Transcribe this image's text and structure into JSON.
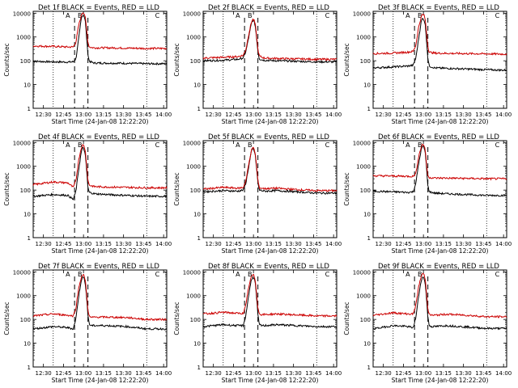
{
  "chart_data": [
    {
      "type": "line",
      "title": "Det 1f BLACK = Events, RED = LLD",
      "xlabel": "Start Time (24-Jan-08 12:22:20)",
      "ylabel": "Counts/sec",
      "scale": "log",
      "ylim": [
        1,
        12000
      ],
      "ytick_labels": [
        "1",
        "10",
        "100",
        "1000",
        "10000"
      ],
      "xtick_labels": [
        "12:30",
        "12:45",
        "13:00",
        "13:15",
        "13:30",
        "13:45",
        "14:00"
      ],
      "xlim_minutes": [
        0,
        100
      ],
      "markers": [
        "A",
        "B",
        "C"
      ],
      "series": [
        {
          "color": "#000000",
          "x": [
            0,
            15,
            26,
            30,
            32,
            34,
            36,
            37,
            38,
            39,
            40,
            41,
            42,
            44,
            46,
            55,
            70,
            85,
            100
          ],
          "y": [
            95,
            90,
            88,
            90,
            120,
            800,
            6000,
            8500,
            8000,
            5000,
            900,
            180,
            95,
            85,
            80,
            80,
            78,
            75,
            75
          ]
        },
        {
          "color": "#cc0000",
          "x": [
            0,
            15,
            26,
            30,
            32,
            34,
            36,
            37,
            38,
            39,
            40,
            41,
            42,
            44,
            46,
            55,
            70,
            85,
            100
          ],
          "y": [
            420,
            400,
            380,
            380,
            600,
            3000,
            8000,
            11000,
            10000,
            7000,
            2000,
            600,
            380,
            360,
            350,
            350,
            340,
            330,
            330
          ]
        }
      ]
    },
    {
      "type": "line",
      "title": "Det 2f BLACK = Events, RED = LLD",
      "xlabel": "Start Time (24-Jan-08 12:22:20)",
      "ylabel": "Counts/sec",
      "scale": "log",
      "ylim": [
        1,
        12000
      ],
      "ytick_labels": [
        "1",
        "10",
        "100",
        "1000",
        "10000"
      ],
      "xtick_labels": [
        "12:30",
        "12:45",
        "13:00",
        "13:15",
        "13:30",
        "13:45",
        "14:00"
      ],
      "xlim_minutes": [
        0,
        100
      ],
      "markers": [
        "A",
        "B",
        "C"
      ],
      "series": [
        {
          "color": "#000000",
          "x": [
            0,
            15,
            26,
            30,
            32,
            34,
            36,
            37,
            38,
            39,
            40,
            41,
            42,
            44,
            46,
            55,
            70,
            85,
            100
          ],
          "y": [
            100,
            105,
            115,
            130,
            250,
            900,
            3500,
            5000,
            4800,
            3000,
            900,
            250,
            120,
            110,
            105,
            100,
            95,
            90,
            90
          ]
        },
        {
          "color": "#cc0000",
          "x": [
            0,
            15,
            26,
            30,
            32,
            34,
            36,
            37,
            38,
            39,
            40,
            41,
            42,
            44,
            46,
            55,
            70,
            85,
            100
          ],
          "y": [
            130,
            140,
            150,
            170,
            300,
            1200,
            4000,
            5500,
            5200,
            3500,
            1100,
            300,
            160,
            140,
            130,
            125,
            120,
            115,
            115
          ]
        }
      ]
    },
    {
      "type": "line",
      "title": "Det 3f BLACK = Events, RED = LLD",
      "xlabel": "Start Time (24-Jan-08 12:22:20)",
      "ylabel": "Counts/sec",
      "scale": "log",
      "ylim": [
        1,
        12000
      ],
      "ytick_labels": [
        "1",
        "10",
        "100",
        "1000",
        "10000"
      ],
      "xtick_labels": [
        "12:30",
        "12:45",
        "13:00",
        "13:15",
        "13:30",
        "13:45",
        "14:00"
      ],
      "xlim_minutes": [
        0,
        100
      ],
      "markers": [
        "A",
        "B",
        "C"
      ],
      "series": [
        {
          "color": "#000000",
          "x": [
            0,
            15,
            26,
            30,
            32,
            34,
            36,
            37,
            38,
            39,
            40,
            41,
            42,
            44,
            46,
            55,
            70,
            85,
            100
          ],
          "y": [
            50,
            55,
            60,
            65,
            130,
            800,
            4500,
            6000,
            5500,
            3500,
            700,
            120,
            60,
            55,
            50,
            48,
            45,
            42,
            40
          ]
        },
        {
          "color": "#cc0000",
          "x": [
            0,
            15,
            26,
            30,
            32,
            34,
            36,
            37,
            38,
            39,
            40,
            41,
            42,
            44,
            46,
            55,
            70,
            85,
            100
          ],
          "y": [
            200,
            210,
            230,
            250,
            450,
            2500,
            7000,
            9000,
            8500,
            5500,
            1500,
            400,
            230,
            220,
            210,
            205,
            200,
            195,
            190
          ]
        }
      ]
    },
    {
      "type": "line",
      "title": "Det 4f BLACK = Events, RED = LLD",
      "xlabel": "Start Time (24-Jan-08 12:22:20)",
      "ylabel": "Counts/sec",
      "scale": "log",
      "ylim": [
        1,
        12000
      ],
      "ytick_labels": [
        "1",
        "10",
        "100",
        "1000",
        "10000"
      ],
      "xtick_labels": [
        "12:30",
        "12:45",
        "13:00",
        "13:15",
        "13:30",
        "13:45",
        "14:00"
      ],
      "xlim_minutes": [
        0,
        100
      ],
      "markers": [
        "A",
        "B",
        "C"
      ],
      "series": [
        {
          "color": "#000000",
          "x": [
            0,
            15,
            26,
            30,
            32,
            34,
            36,
            37,
            38,
            39,
            40,
            41,
            42,
            44,
            46,
            55,
            70,
            85,
            100
          ],
          "y": [
            55,
            65,
            60,
            40,
            90,
            700,
            4000,
            6000,
            5500,
            3000,
            700,
            120,
            80,
            75,
            70,
            65,
            60,
            55,
            55
          ]
        },
        {
          "color": "#cc0000",
          "x": [
            0,
            15,
            26,
            30,
            32,
            34,
            36,
            37,
            38,
            39,
            40,
            41,
            42,
            44,
            46,
            55,
            70,
            85,
            100
          ],
          "y": [
            170,
            220,
            200,
            130,
            250,
            1800,
            6000,
            8000,
            7500,
            4500,
            1200,
            250,
            160,
            150,
            140,
            135,
            130,
            125,
            125
          ]
        }
      ]
    },
    {
      "type": "line",
      "title": "Det 5f BLACK = Events, RED = LLD",
      "xlabel": "Start Time (24-Jan-08 12:22:20)",
      "ylabel": "Counts/sec",
      "scale": "log",
      "ylim": [
        1,
        12000
      ],
      "ytick_labels": [
        "1",
        "10",
        "100",
        "1000",
        "10000"
      ],
      "xtick_labels": [
        "12:30",
        "12:45",
        "13:00",
        "13:15",
        "13:30",
        "13:45",
        "14:00"
      ],
      "xlim_minutes": [
        0,
        100
      ],
      "markers": [
        "A",
        "B",
        "C"
      ],
      "series": [
        {
          "color": "#000000",
          "x": [
            0,
            15,
            26,
            30,
            32,
            34,
            36,
            37,
            38,
            39,
            40,
            41,
            42,
            44,
            46,
            55,
            70,
            85,
            100
          ],
          "y": [
            85,
            95,
            90,
            100,
            200,
            900,
            4000,
            5500,
            5000,
            3000,
            800,
            200,
            100,
            95,
            90,
            95,
            85,
            75,
            75
          ]
        },
        {
          "color": "#cc0000",
          "x": [
            0,
            15,
            26,
            30,
            32,
            34,
            36,
            37,
            38,
            39,
            40,
            41,
            42,
            44,
            46,
            55,
            70,
            85,
            100
          ],
          "y": [
            110,
            130,
            120,
            130,
            250,
            1100,
            4500,
            6000,
            5500,
            3500,
            1000,
            250,
            125,
            120,
            115,
            120,
            105,
            95,
            95
          ]
        }
      ]
    },
    {
      "type": "line",
      "title": "Det 6f BLACK = Events, RED = LLD",
      "xlabel": "Start Time (24-Jan-08 12:22:20)",
      "ylabel": "Counts/sec",
      "scale": "log",
      "ylim": [
        1,
        12000
      ],
      "ytick_labels": [
        "1",
        "10",
        "100",
        "1000",
        "10000"
      ],
      "xtick_labels": [
        "12:30",
        "12:45",
        "13:00",
        "13:15",
        "13:30",
        "13:45",
        "14:00"
      ],
      "xlim_minutes": [
        0,
        100
      ],
      "markers": [
        "A",
        "B",
        "C"
      ],
      "series": [
        {
          "color": "#000000",
          "x": [
            0,
            15,
            26,
            30,
            32,
            34,
            36,
            37,
            38,
            39,
            40,
            41,
            42,
            44,
            46,
            55,
            70,
            85,
            100
          ],
          "y": [
            90,
            85,
            80,
            85,
            200,
            1200,
            5000,
            7000,
            6500,
            4000,
            800,
            150,
            85,
            80,
            75,
            70,
            65,
            60,
            60
          ]
        },
        {
          "color": "#cc0000",
          "x": [
            0,
            15,
            26,
            30,
            32,
            34,
            36,
            37,
            38,
            39,
            40,
            41,
            42,
            44,
            46,
            55,
            70,
            85,
            100
          ],
          "y": [
            400,
            390,
            380,
            380,
            500,
            2500,
            6500,
            8500,
            8000,
            5000,
            1200,
            380,
            340,
            330,
            320,
            320,
            310,
            300,
            300
          ]
        }
      ]
    },
    {
      "type": "line",
      "title": "Det 7f BLACK = Events, RED = LLD",
      "xlabel": "Start Time (24-Jan-08 12:22:20)",
      "ylabel": "Counts/sec",
      "scale": "log",
      "ylim": [
        1,
        12000
      ],
      "ytick_labels": [
        "1",
        "10",
        "100",
        "1000",
        "10000"
      ],
      "xtick_labels": [
        "12:30",
        "12:45",
        "13:00",
        "13:15",
        "13:30",
        "13:45",
        "14:00"
      ],
      "xlim_minutes": [
        0,
        100
      ],
      "markers": [
        "A",
        "B",
        "C"
      ],
      "series": [
        {
          "color": "#000000",
          "x": [
            0,
            15,
            26,
            30,
            32,
            34,
            36,
            37,
            38,
            39,
            40,
            41,
            42,
            44,
            46,
            55,
            70,
            85,
            100
          ],
          "y": [
            40,
            50,
            45,
            40,
            110,
            900,
            4500,
            6000,
            5500,
            3500,
            800,
            150,
            60,
            55,
            55,
            55,
            50,
            40,
            40
          ]
        },
        {
          "color": "#cc0000",
          "x": [
            0,
            15,
            26,
            30,
            32,
            34,
            36,
            37,
            38,
            39,
            40,
            41,
            42,
            44,
            46,
            55,
            70,
            85,
            100
          ],
          "y": [
            140,
            170,
            150,
            140,
            300,
            2000,
            6000,
            7500,
            7000,
            4500,
            1200,
            250,
            130,
            120,
            125,
            125,
            120,
            100,
            100
          ]
        }
      ]
    },
    {
      "type": "line",
      "title": "Det 8f BLACK = Events, RED = LLD",
      "xlabel": "Start Time (24-Jan-08 12:22:20)",
      "ylabel": "Counts/sec",
      "scale": "log",
      "ylim": [
        1,
        12000
      ],
      "ytick_labels": [
        "1",
        "10",
        "100",
        "1000",
        "10000"
      ],
      "xtick_labels": [
        "12:30",
        "12:45",
        "13:00",
        "13:15",
        "13:30",
        "13:45",
        "14:00"
      ],
      "xlim_minutes": [
        0,
        100
      ],
      "markers": [
        "A",
        "B",
        "C"
      ],
      "series": [
        {
          "color": "#000000",
          "x": [
            0,
            15,
            26,
            30,
            32,
            34,
            36,
            37,
            38,
            39,
            40,
            41,
            42,
            44,
            46,
            55,
            70,
            85,
            100
          ],
          "y": [
            50,
            60,
            55,
            55,
            150,
            1000,
            4500,
            6000,
            5500,
            3500,
            800,
            150,
            60,
            55,
            55,
            60,
            55,
            50,
            50
          ]
        },
        {
          "color": "#cc0000",
          "x": [
            0,
            15,
            26,
            30,
            32,
            34,
            36,
            37,
            38,
            39,
            40,
            41,
            42,
            44,
            46,
            55,
            70,
            85,
            100
          ],
          "y": [
            170,
            200,
            180,
            180,
            400,
            2200,
            6000,
            7500,
            7000,
            4500,
            1300,
            300,
            170,
            160,
            160,
            170,
            155,
            140,
            140
          ]
        }
      ]
    },
    {
      "type": "line",
      "title": "Det 9f BLACK = Events, RED = LLD",
      "xlabel": "Start Time (24-Jan-08 12:22:20)",
      "ylabel": "Counts/sec",
      "scale": "log",
      "ylim": [
        1,
        12000
      ],
      "ytick_labels": [
        "1",
        "10",
        "100",
        "1000",
        "10000"
      ],
      "xtick_labels": [
        "12:30",
        "12:45",
        "13:00",
        "13:15",
        "13:30",
        "13:45",
        "14:00"
      ],
      "xlim_minutes": [
        0,
        100
      ],
      "markers": [
        "A",
        "B",
        "C"
      ],
      "series": [
        {
          "color": "#000000",
          "x": [
            0,
            15,
            26,
            30,
            32,
            34,
            36,
            37,
            38,
            39,
            40,
            41,
            42,
            44,
            46,
            55,
            70,
            85,
            100
          ],
          "y": [
            40,
            55,
            50,
            45,
            120,
            900,
            4500,
            6000,
            5500,
            3500,
            700,
            120,
            55,
            50,
            50,
            55,
            48,
            42,
            42
          ]
        },
        {
          "color": "#cc0000",
          "x": [
            0,
            15,
            26,
            30,
            32,
            34,
            36,
            37,
            38,
            39,
            40,
            41,
            42,
            44,
            46,
            55,
            70,
            85,
            100
          ],
          "y": [
            150,
            190,
            170,
            170,
            400,
            2300,
            6500,
            8500,
            8000,
            5000,
            1300,
            280,
            160,
            150,
            150,
            165,
            150,
            130,
            130
          ]
        }
      ]
    }
  ]
}
